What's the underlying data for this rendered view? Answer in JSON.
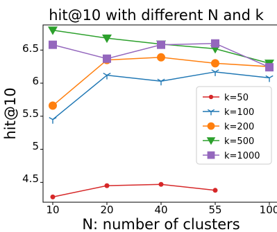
{
  "chart_data": {
    "type": "line",
    "title": "hit@10 with different N and k",
    "xlabel": "N: number of clusters",
    "ylabel": "hit@10",
    "x_categories": [
      "10",
      "20",
      "40",
      "55",
      "100"
    ],
    "yticks": [
      "4.5",
      "5",
      "5.5",
      "6",
      "6.5"
    ],
    "ylim": [
      4.2,
      6.88
    ],
    "legend_position": "center-right",
    "grid": false,
    "series": [
      {
        "name": "k=50",
        "marker": "dot",
        "color": "#d62728",
        "values": [
          4.28,
          4.45,
          4.47,
          4.38,
          null
        ]
      },
      {
        "name": "k=100",
        "marker": "tri_down",
        "color": "#1f77b4",
        "values": [
          5.45,
          6.12,
          6.03,
          6.17,
          6.08
        ]
      },
      {
        "name": "k=200",
        "marker": "circle",
        "color": "#ff7f0e",
        "values": [
          5.66,
          6.35,
          6.39,
          6.3,
          6.25
        ]
      },
      {
        "name": "k=500",
        "marker": "triangle_down",
        "color": "#2ca02c",
        "values": [
          6.8,
          6.68,
          6.59,
          6.52,
          6.3
        ]
      },
      {
        "name": "k=1000",
        "marker": "square",
        "color": "#9467bd",
        "values": [
          6.58,
          6.37,
          6.58,
          6.6,
          6.24
        ]
      }
    ]
  }
}
